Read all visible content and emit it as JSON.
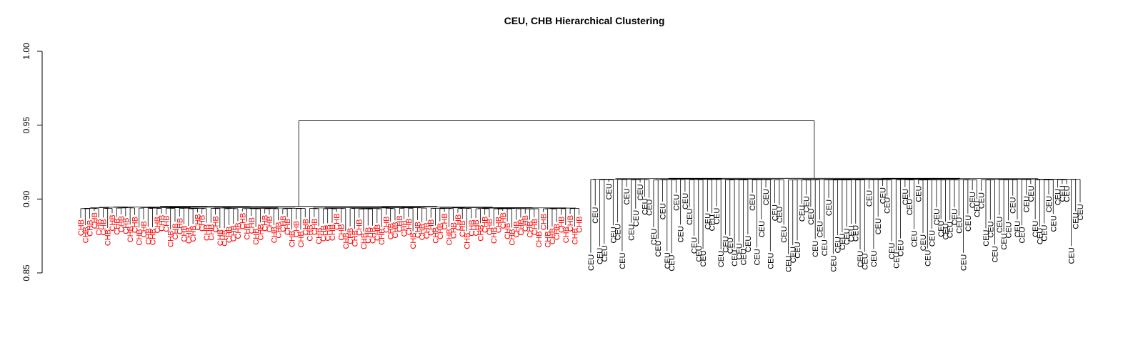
{
  "chart_data": {
    "type": "dendrogram",
    "title": "CEU, CHB Hierarchical Clustering",
    "xlabel": "",
    "ylabel": "",
    "ylim": [
      0.85,
      1.0
    ],
    "yticks": [
      0.85,
      0.9,
      0.95,
      1.0
    ],
    "ytick_labels": [
      "0.85",
      "0.90",
      "0.95",
      "1.00"
    ],
    "grid": false,
    "root_height": 0.953,
    "clusters": [
      {
        "name": "CHB",
        "label_color": "#ff0000",
        "leaf_count": 112,
        "merge_height": 0.895,
        "leaf_height_range": [
          0.878,
          0.892
        ]
      },
      {
        "name": "CEU",
        "label_color": "#000000",
        "leaf_count": 110,
        "merge_height": 0.914,
        "leaf_height_range": [
          0.862,
          0.912
        ]
      }
    ]
  }
}
